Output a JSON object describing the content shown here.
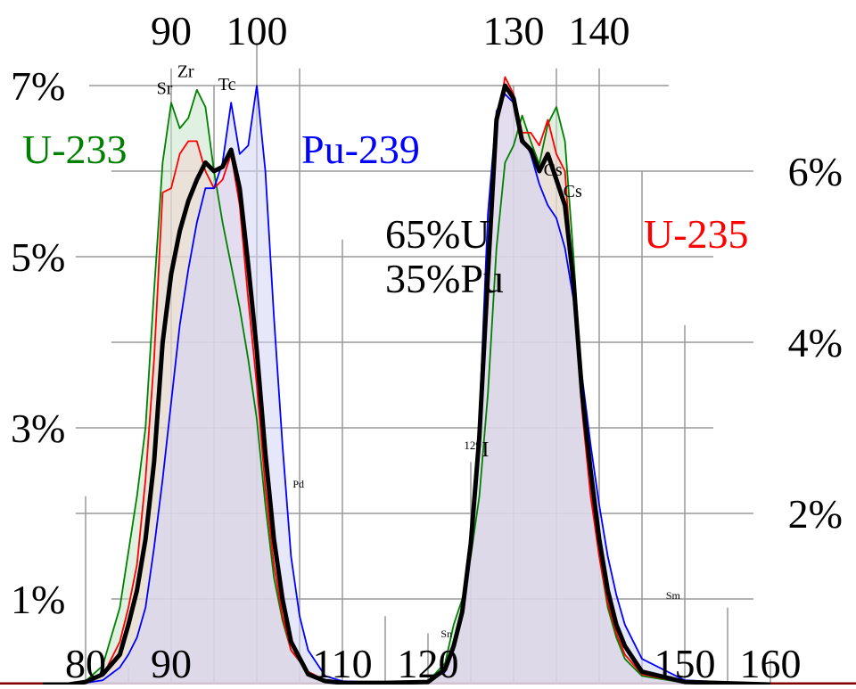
{
  "chart_data": {
    "type": "area",
    "xlabel": "",
    "ylabel": "",
    "x_tick_labels_bottom": [
      "80",
      "90",
      "110",
      "120",
      "150",
      "160"
    ],
    "x_tick_labels_top": [
      "90",
      "100",
      "130",
      "140"
    ],
    "y_tick_labels_left": [
      "1%",
      "3%",
      "5%",
      "7%"
    ],
    "y_tick_labels_right": [
      "2%",
      "4%",
      "6%"
    ],
    "xlim": [
      75,
      165
    ],
    "ylim": [
      0,
      7.1
    ],
    "grid": true,
    "series": [
      {
        "name": "U-233",
        "color": "#008000",
        "fill": "#c8e6c8",
        "label_position": "left",
        "points": [
          [
            75,
            0
          ],
          [
            78,
            0.01
          ],
          [
            80,
            0.04
          ],
          [
            82,
            0.22
          ],
          [
            84,
            0.9
          ],
          [
            85,
            1.55
          ],
          [
            86,
            2.2
          ],
          [
            87,
            3
          ],
          [
            88,
            4.6
          ],
          [
            89,
            6.1
          ],
          [
            90,
            6.8
          ],
          [
            91,
            6.5
          ],
          [
            92,
            6.62
          ],
          [
            93,
            6.95
          ],
          [
            94,
            6.75
          ],
          [
            95,
            6
          ],
          [
            96,
            5.4
          ],
          [
            97,
            4.9
          ],
          [
            98,
            4.4
          ],
          [
            99,
            3.8
          ],
          [
            100,
            3.1
          ],
          [
            101,
            2.1
          ],
          [
            102,
            1.25
          ],
          [
            103,
            0.75
          ],
          [
            104,
            0.4
          ],
          [
            106,
            0.14
          ],
          [
            108,
            0.05
          ],
          [
            110,
            0.03
          ],
          [
            115,
            0.02
          ],
          [
            120,
            0.04
          ],
          [
            122,
            0.25
          ],
          [
            123,
            0.7
          ],
          [
            124,
            1
          ],
          [
            125,
            1.5
          ],
          [
            126,
            2.2
          ],
          [
            127,
            3.4
          ],
          [
            128,
            5.1
          ],
          [
            129,
            6.1
          ],
          [
            130,
            6.3
          ],
          [
            131,
            6.65
          ],
          [
            132,
            6.35
          ],
          [
            133,
            6.08
          ],
          [
            134,
            6.55
          ],
          [
            135,
            6.75
          ],
          [
            136,
            6.35
          ],
          [
            137,
            5
          ],
          [
            138,
            3.5
          ],
          [
            139,
            2.4
          ],
          [
            140,
            1.5
          ],
          [
            141,
            0.9
          ],
          [
            142,
            0.55
          ],
          [
            143,
            0.3
          ],
          [
            145,
            0.1
          ],
          [
            150,
            0.02
          ],
          [
            160,
            0
          ]
        ]
      },
      {
        "name": "U-235",
        "color": "#ff0000",
        "fill": "#f2d3d3",
        "label_position": "right",
        "points": [
          [
            75,
            0
          ],
          [
            78,
            0
          ],
          [
            80,
            0.03
          ],
          [
            82,
            0.1
          ],
          [
            84,
            0.5
          ],
          [
            85,
            0.9
          ],
          [
            86,
            1.4
          ],
          [
            87,
            2.4
          ],
          [
            88,
            3.8
          ],
          [
            89,
            5.75
          ],
          [
            90,
            5.8
          ],
          [
            91,
            6.2
          ],
          [
            92,
            6.35
          ],
          [
            93,
            6.35
          ],
          [
            94,
            6
          ],
          [
            95,
            5.8
          ],
          [
            96,
            5.9
          ],
          [
            97,
            6.2
          ],
          [
            98,
            5.6
          ],
          [
            99,
            4.5
          ],
          [
            100,
            3.5
          ],
          [
            101,
            2.3
          ],
          [
            102,
            1.4
          ],
          [
            103,
            0.8
          ],
          [
            104,
            0.4
          ],
          [
            106,
            0.15
          ],
          [
            108,
            0.05
          ],
          [
            110,
            0.03
          ],
          [
            115,
            0.02
          ],
          [
            120,
            0.03
          ],
          [
            122,
            0.2
          ],
          [
            123,
            0.5
          ],
          [
            124,
            0.9
          ],
          [
            125,
            1.7
          ],
          [
            126,
            2.8
          ],
          [
            127,
            4.5
          ],
          [
            128,
            6.5
          ],
          [
            129,
            7.1
          ],
          [
            130,
            6.9
          ],
          [
            131,
            6.45
          ],
          [
            132,
            6.45
          ],
          [
            133,
            6.3
          ],
          [
            134,
            6.6
          ],
          [
            135,
            6.2
          ],
          [
            136,
            6
          ],
          [
            137,
            4.6
          ],
          [
            138,
            3.2
          ],
          [
            139,
            2.2
          ],
          [
            140,
            1.5
          ],
          [
            141,
            0.95
          ],
          [
            142,
            0.6
          ],
          [
            143,
            0.35
          ],
          [
            145,
            0.12
          ],
          [
            150,
            0.02
          ],
          [
            160,
            0
          ]
        ]
      },
      {
        "name": "Pu-239",
        "color": "#0000ff",
        "fill": "#d3d3f5",
        "label_position": "right",
        "points": [
          [
            75,
            0
          ],
          [
            78,
            0
          ],
          [
            80,
            0.02
          ],
          [
            82,
            0.05
          ],
          [
            84,
            0.2
          ],
          [
            85,
            0.35
          ],
          [
            86,
            0.55
          ],
          [
            87,
            0.9
          ],
          [
            88,
            1.6
          ],
          [
            89,
            2.4
          ],
          [
            90,
            3.3
          ],
          [
            91,
            4.2
          ],
          [
            92,
            4.85
          ],
          [
            93,
            5.4
          ],
          [
            94,
            5.8
          ],
          [
            95,
            5.8
          ],
          [
            96,
            6.1
          ],
          [
            97,
            6.8
          ],
          [
            98,
            6.2
          ],
          [
            99,
            6.3
          ],
          [
            100,
            7
          ],
          [
            101,
            6
          ],
          [
            102,
            4.3
          ],
          [
            103,
            2.8
          ],
          [
            104,
            1.5
          ],
          [
            105,
            0.8
          ],
          [
            106,
            0.4
          ],
          [
            108,
            0.1
          ],
          [
            110,
            0.04
          ],
          [
            115,
            0.02
          ],
          [
            120,
            0.03
          ],
          [
            122,
            0.15
          ],
          [
            123,
            0.4
          ],
          [
            124,
            0.8
          ],
          [
            125,
            1.6
          ],
          [
            126,
            3.1
          ],
          [
            127,
            5.5
          ],
          [
            128,
            6.7
          ],
          [
            129,
            6.9
          ],
          [
            130,
            6.8
          ],
          [
            131,
            6.4
          ],
          [
            132,
            6.2
          ],
          [
            133,
            5.85
          ],
          [
            134,
            5.6
          ],
          [
            135,
            5.45
          ],
          [
            136,
            5.1
          ],
          [
            137,
            4.5
          ],
          [
            138,
            3.6
          ],
          [
            139,
            2.8
          ],
          [
            140,
            2.1
          ],
          [
            141,
            1.5
          ],
          [
            142,
            1.05
          ],
          [
            143,
            0.7
          ],
          [
            145,
            0.3
          ],
          [
            150,
            0.05
          ],
          [
            160,
            0
          ]
        ]
      },
      {
        "name": "65%U 35%Pu",
        "color": "#000000",
        "fill": "none",
        "stroke_width": 5,
        "label_position": "center",
        "points": [
          [
            75,
            0
          ],
          [
            78,
            0
          ],
          [
            80,
            0.03
          ],
          [
            82,
            0.12
          ],
          [
            84,
            0.35
          ],
          [
            85,
            0.7
          ],
          [
            86,
            1.1
          ],
          [
            87,
            1.7
          ],
          [
            88,
            2.6
          ],
          [
            89,
            4
          ],
          [
            90,
            4.8
          ],
          [
            91,
            5.3
          ],
          [
            92,
            5.65
          ],
          [
            93,
            5.9
          ],
          [
            94,
            6.1
          ],
          [
            95,
            6
          ],
          [
            96,
            6.05
          ],
          [
            97,
            6.25
          ],
          [
            98,
            5.8
          ],
          [
            99,
            4.9
          ],
          [
            100,
            3.9
          ],
          [
            101,
            2.7
          ],
          [
            102,
            1.7
          ],
          [
            103,
            1
          ],
          [
            104,
            0.5
          ],
          [
            106,
            0.12
          ],
          [
            108,
            0.04
          ],
          [
            110,
            0.02
          ],
          [
            115,
            0.02
          ],
          [
            120,
            0.03
          ],
          [
            122,
            0.18
          ],
          [
            123,
            0.45
          ],
          [
            124,
            0.85
          ],
          [
            125,
            1.65
          ],
          [
            126,
            2.9
          ],
          [
            127,
            4.8
          ],
          [
            128,
            6.6
          ],
          [
            129,
            7
          ],
          [
            130,
            6.85
          ],
          [
            131,
            6.35
          ],
          [
            132,
            6.25
          ],
          [
            133,
            6
          ],
          [
            134,
            6.2
          ],
          [
            135,
            5.9
          ],
          [
            136,
            5.6
          ],
          [
            137,
            4.7
          ],
          [
            138,
            3.4
          ],
          [
            139,
            2.5
          ],
          [
            140,
            1.7
          ],
          [
            141,
            1.1
          ],
          [
            142,
            0.7
          ],
          [
            143,
            0.45
          ],
          [
            145,
            0.15
          ],
          [
            150,
            0.03
          ],
          [
            160,
            0
          ]
        ]
      }
    ],
    "labels": {
      "series_u233": "U-233",
      "series_pu239": "Pu-239",
      "series_u235": "U-235",
      "mix_line1": "65%U",
      "mix_line2": "35%Pu"
    },
    "annotations": [
      {
        "text": "Sr",
        "x": 88.3,
        "y": 6.9
      },
      {
        "text": "Zr",
        "x": 90.7,
        "y": 7.1
      },
      {
        "text": "Tc",
        "x": 95.5,
        "y": 6.95
      },
      {
        "text": "Pd",
        "x": 104.2,
        "y": 2.3
      },
      {
        "text": "129",
        "text2": "I",
        "x": 124.2,
        "y": 2.75
      },
      {
        "text": "Sn",
        "x": 121.5,
        "y": 0.55
      },
      {
        "text": "Cs",
        "x": 133.5,
        "y": 5.95
      },
      {
        "text": "Cs",
        "x": 135.8,
        "y": 5.7
      },
      {
        "text": "Sm",
        "x": 147.8,
        "y": 1.0
      }
    ]
  }
}
